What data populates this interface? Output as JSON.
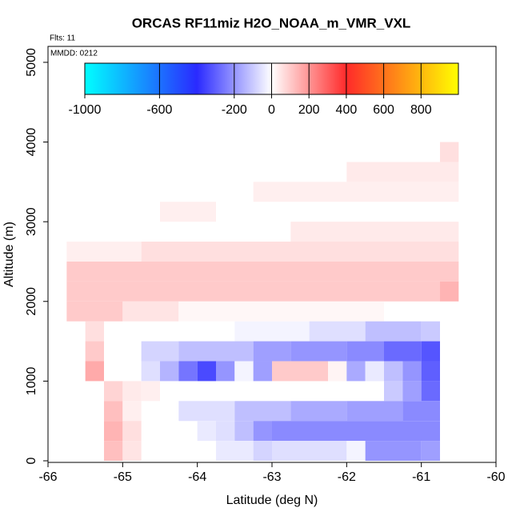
{
  "chart_data": {
    "type": "heatmap",
    "title": "ORCAS RF11miz H2O_NOAA_m_VMR_VXL",
    "subtitle": "Flts: 11",
    "annotation": "MMDD: 0212",
    "x_label": "Latitude (deg N)",
    "y_label": "Altitude (m)",
    "xlim": [
      -66,
      -60
    ],
    "xticks": [
      -66,
      -65,
      -64,
      -63,
      -62,
      -61,
      -60
    ],
    "ylim": [
      -20,
      5200
    ],
    "yticks": [
      0,
      1000,
      2000,
      3000,
      4000,
      5000
    ],
    "colorbar": {
      "lim": [
        -1000,
        1000
      ],
      "ticks": [
        -1000,
        -600,
        -200,
        0,
        200,
        400,
        600,
        800
      ]
    },
    "colorscale": [
      [
        -1000,
        "#00ffff"
      ],
      [
        -400,
        "#2a2aff"
      ],
      [
        0,
        "#ffffff"
      ],
      [
        400,
        "#ff2a2a"
      ],
      [
        1000,
        "#ffff00"
      ]
    ],
    "cells": [
      {
        "lat": [
          -60.75,
          -60.5
        ],
        "alt": [
          3750,
          4000
        ],
        "value": 60
      },
      {
        "lat": [
          -62.0,
          -60.5
        ],
        "alt": [
          3500,
          3750
        ],
        "value": 40
      },
      {
        "lat": [
          -63.25,
          -60.5
        ],
        "alt": [
          3250,
          3500
        ],
        "value": 30
      },
      {
        "lat": [
          -64.5,
          -63.75
        ],
        "alt": [
          3000,
          3250
        ],
        "value": 30
      },
      {
        "lat": [
          -62.75,
          -60.5
        ],
        "alt": [
          2750,
          3000
        ],
        "value": 40
      },
      {
        "lat": [
          -65.75,
          -64.75
        ],
        "alt": [
          2500,
          2750
        ],
        "value": 30
      },
      {
        "lat": [
          -64.75,
          -60.5
        ],
        "alt": [
          2500,
          2750
        ],
        "value": 60
      },
      {
        "lat": [
          -65.75,
          -60.5
        ],
        "alt": [
          2250,
          2500
        ],
        "value": 100
      },
      {
        "lat": [
          -65.75,
          -60.75
        ],
        "alt": [
          2000,
          2250
        ],
        "value": 100
      },
      {
        "lat": [
          -60.75,
          -60.5
        ],
        "alt": [
          2000,
          2250
        ],
        "value": 140
      },
      {
        "lat": [
          -65.75,
          -65.0
        ],
        "alt": [
          1750,
          2000
        ],
        "value": 100
      },
      {
        "lat": [
          -65.0,
          -64.25
        ],
        "alt": [
          1750,
          2000
        ],
        "value": 50
      },
      {
        "lat": [
          -64.25,
          -61.5
        ],
        "alt": [
          1750,
          2000
        ],
        "value": 15
      },
      {
        "lat": [
          -65.5,
          -65.25
        ],
        "alt": [
          1500,
          1750
        ],
        "value": 60
      },
      {
        "lat": [
          -63.5,
          -62.5
        ],
        "alt": [
          1500,
          1750
        ],
        "value": -20
      },
      {
        "lat": [
          -62.5,
          -61.75
        ],
        "alt": [
          1500,
          1750
        ],
        "value": -60
      },
      {
        "lat": [
          -61.75,
          -61.0
        ],
        "alt": [
          1500,
          1750
        ],
        "value": -120
      },
      {
        "lat": [
          -61.0,
          -60.75
        ],
        "alt": [
          1500,
          1750
        ],
        "value": -100
      },
      {
        "lat": [
          -65.5,
          -65.25
        ],
        "alt": [
          1250,
          1500
        ],
        "value": 100
      },
      {
        "lat": [
          -64.75,
          -64.25
        ],
        "alt": [
          1250,
          1500
        ],
        "value": -80
      },
      {
        "lat": [
          -64.25,
          -63.25
        ],
        "alt": [
          1250,
          1500
        ],
        "value": -120
      },
      {
        "lat": [
          -63.25,
          -62.75
        ],
        "alt": [
          1250,
          1500
        ],
        "value": -180
      },
      {
        "lat": [
          -62.75,
          -62.0
        ],
        "alt": [
          1250,
          1500
        ],
        "value": -200
      },
      {
        "lat": [
          -62.0,
          -61.5
        ],
        "alt": [
          1250,
          1500
        ],
        "value": -220
      },
      {
        "lat": [
          -61.5,
          -61.0
        ],
        "alt": [
          1250,
          1500
        ],
        "value": -280
      },
      {
        "lat": [
          -61.0,
          -60.75
        ],
        "alt": [
          1250,
          1500
        ],
        "value": -320
      },
      {
        "lat": [
          -65.5,
          -65.25
        ],
        "alt": [
          1000,
          1250
        ],
        "value": 160
      },
      {
        "lat": [
          -64.75,
          -64.5
        ],
        "alt": [
          1000,
          1250
        ],
        "value": -60
      },
      {
        "lat": [
          -64.5,
          -64.25
        ],
        "alt": [
          1000,
          1250
        ],
        "value": -140
      },
      {
        "lat": [
          -64.25,
          -64.0
        ],
        "alt": [
          1000,
          1250
        ],
        "value": -260
      },
      {
        "lat": [
          -64.0,
          -63.75
        ],
        "alt": [
          1000,
          1250
        ],
        "value": -340
      },
      {
        "lat": [
          -63.75,
          -63.5
        ],
        "alt": [
          1000,
          1250
        ],
        "value": -200
      },
      {
        "lat": [
          -63.5,
          -63.25
        ],
        "alt": [
          1000,
          1250
        ],
        "value": -20
      },
      {
        "lat": [
          -63.25,
          -63.0
        ],
        "alt": [
          1000,
          1250
        ],
        "value": -180
      },
      {
        "lat": [
          -63.0,
          -62.25
        ],
        "alt": [
          1000,
          1250
        ],
        "value": 100
      },
      {
        "lat": [
          -62.25,
          -62.0
        ],
        "alt": [
          1000,
          1250
        ],
        "value": 20
      },
      {
        "lat": [
          -62.0,
          -61.75
        ],
        "alt": [
          1000,
          1250
        ],
        "value": -160
      },
      {
        "lat": [
          -61.75,
          -61.5
        ],
        "alt": [
          1000,
          1250
        ],
        "value": -40
      },
      {
        "lat": [
          -61.5,
          -61.25
        ],
        "alt": [
          1000,
          1250
        ],
        "value": -120
      },
      {
        "lat": [
          -61.25,
          -61.0
        ],
        "alt": [
          1000,
          1250
        ],
        "value": -200
      },
      {
        "lat": [
          -61.0,
          -60.75
        ],
        "alt": [
          1000,
          1250
        ],
        "value": -300
      },
      {
        "lat": [
          -65.25,
          -65.0
        ],
        "alt": [
          750,
          1000
        ],
        "value": 80
      },
      {
        "lat": [
          -65.0,
          -64.75
        ],
        "alt": [
          750,
          1000
        ],
        "value": 40
      },
      {
        "lat": [
          -64.75,
          -64.5
        ],
        "alt": [
          750,
          1000
        ],
        "value": 30
      },
      {
        "lat": [
          -61.5,
          -61.25
        ],
        "alt": [
          750,
          1000
        ],
        "value": -100
      },
      {
        "lat": [
          -61.25,
          -61.0
        ],
        "alt": [
          750,
          1000
        ],
        "value": -180
      },
      {
        "lat": [
          -61.0,
          -60.75
        ],
        "alt": [
          750,
          1000
        ],
        "value": -280
      },
      {
        "lat": [
          -65.25,
          -65.0
        ],
        "alt": [
          500,
          750
        ],
        "value": 120
      },
      {
        "lat": [
          -65.0,
          -64.75
        ],
        "alt": [
          500,
          750
        ],
        "value": 30
      },
      {
        "lat": [
          -64.25,
          -63.5
        ],
        "alt": [
          500,
          750
        ],
        "value": -60
      },
      {
        "lat": [
          -63.5,
          -62.75
        ],
        "alt": [
          500,
          750
        ],
        "value": -120
      },
      {
        "lat": [
          -62.75,
          -62.0
        ],
        "alt": [
          500,
          750
        ],
        "value": -160
      },
      {
        "lat": [
          -62.0,
          -61.25
        ],
        "alt": [
          500,
          750
        ],
        "value": -180
      },
      {
        "lat": [
          -61.25,
          -60.75
        ],
        "alt": [
          500,
          750
        ],
        "value": -220
      },
      {
        "lat": [
          -65.25,
          -65.0
        ],
        "alt": [
          250,
          500
        ],
        "value": 140
      },
      {
        "lat": [
          -65.0,
          -64.75
        ],
        "alt": [
          250,
          500
        ],
        "value": 60
      },
      {
        "lat": [
          -64.0,
          -63.75
        ],
        "alt": [
          250,
          500
        ],
        "value": -40
      },
      {
        "lat": [
          -63.75,
          -63.5
        ],
        "alt": [
          250,
          500
        ],
        "value": -60
      },
      {
        "lat": [
          -63.5,
          -63.25
        ],
        "alt": [
          250,
          500
        ],
        "value": -120
      },
      {
        "lat": [
          -63.25,
          -63.0
        ],
        "alt": [
          250,
          500
        ],
        "value": -200
      },
      {
        "lat": [
          -63.0,
          -60.75
        ],
        "alt": [
          250,
          500
        ],
        "value": -220
      },
      {
        "lat": [
          -65.25,
          -65.0
        ],
        "alt": [
          0,
          250
        ],
        "value": 120
      },
      {
        "lat": [
          -65.0,
          -64.75
        ],
        "alt": [
          0,
          250
        ],
        "value": 50
      },
      {
        "lat": [
          -63.75,
          -63.25
        ],
        "alt": [
          0,
          250
        ],
        "value": -40
      },
      {
        "lat": [
          -63.25,
          -63.0
        ],
        "alt": [
          0,
          250
        ],
        "value": -80
      },
      {
        "lat": [
          -63.0,
          -62.0
        ],
        "alt": [
          0,
          250
        ],
        "value": -60
      },
      {
        "lat": [
          -62.0,
          -61.75
        ],
        "alt": [
          0,
          250
        ],
        "value": -20
      },
      {
        "lat": [
          -61.75,
          -61.0
        ],
        "alt": [
          0,
          250
        ],
        "value": -200
      },
      {
        "lat": [
          -61.0,
          -60.75
        ],
        "alt": [
          0,
          250
        ],
        "value": -180
      }
    ]
  }
}
